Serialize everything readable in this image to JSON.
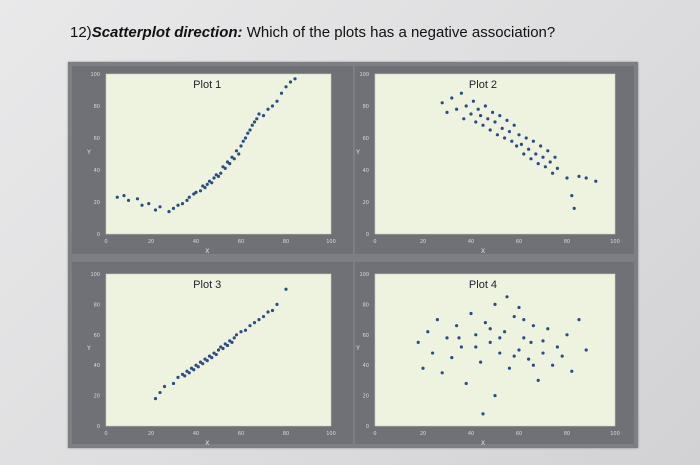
{
  "question": {
    "number": "12)",
    "lead": "Scatterplot direction:",
    "text": " Which of the plots has a negative association?"
  },
  "chart_data": [
    {
      "type": "scatter",
      "title": "Plot 1",
      "xlabel": "X",
      "ylabel": "Y",
      "xlim": [
        0,
        100
      ],
      "ylim": [
        0,
        100
      ],
      "xticks": [
        "0",
        "20",
        "40",
        "60",
        "80",
        "100"
      ],
      "yticks": [
        "0",
        "20",
        "40",
        "60",
        "80",
        "100"
      ],
      "colors": {
        "point": "#2a4d86"
      },
      "points": [
        [
          5,
          23
        ],
        [
          8,
          24
        ],
        [
          10,
          21
        ],
        [
          14,
          22
        ],
        [
          16,
          18
        ],
        [
          19,
          19
        ],
        [
          22,
          15
        ],
        [
          24,
          17
        ],
        [
          28,
          14
        ],
        [
          30,
          16
        ],
        [
          32,
          18
        ],
        [
          34,
          19
        ],
        [
          36,
          21
        ],
        [
          37,
          23
        ],
        [
          39,
          25
        ],
        [
          40,
          26
        ],
        [
          42,
          27
        ],
        [
          43,
          30
        ],
        [
          44,
          29
        ],
        [
          45,
          31
        ],
        [
          46,
          33
        ],
        [
          47,
          32
        ],
        [
          48,
          35
        ],
        [
          49,
          37
        ],
        [
          50,
          36
        ],
        [
          51,
          38
        ],
        [
          52,
          42
        ],
        [
          53,
          41
        ],
        [
          54,
          45
        ],
        [
          55,
          44
        ],
        [
          56,
          48
        ],
        [
          57,
          47
        ],
        [
          58,
          52
        ],
        [
          59,
          50
        ],
        [
          60,
          55
        ],
        [
          61,
          58
        ],
        [
          62,
          60
        ],
        [
          63,
          63
        ],
        [
          64,
          65
        ],
        [
          65,
          68
        ],
        [
          66,
          70
        ],
        [
          67,
          72
        ],
        [
          68,
          75
        ],
        [
          70,
          74
        ],
        [
          72,
          78
        ],
        [
          74,
          80
        ],
        [
          76,
          83
        ],
        [
          78,
          88
        ],
        [
          80,
          92
        ],
        [
          82,
          95
        ],
        [
          84,
          97
        ]
      ]
    },
    {
      "type": "scatter",
      "title": "Plot 2",
      "xlabel": "X",
      "ylabel": "Y",
      "xlim": [
        0,
        100
      ],
      "ylim": [
        0,
        100
      ],
      "xticks": [
        "0",
        "20",
        "40",
        "60",
        "80",
        "100"
      ],
      "yticks": [
        "0",
        "20",
        "40",
        "60",
        "80",
        "100"
      ],
      "colors": {
        "point": "#2a4d86"
      },
      "points": [
        [
          28,
          82
        ],
        [
          30,
          76
        ],
        [
          32,
          85
        ],
        [
          34,
          78
        ],
        [
          36,
          88
        ],
        [
          37,
          72
        ],
        [
          38,
          80
        ],
        [
          40,
          75
        ],
        [
          41,
          83
        ],
        [
          42,
          70
        ],
        [
          43,
          78
        ],
        [
          44,
          74
        ],
        [
          45,
          68
        ],
        [
          46,
          80
        ],
        [
          47,
          72
        ],
        [
          48,
          65
        ],
        [
          49,
          76
        ],
        [
          50,
          70
        ],
        [
          51,
          62
        ],
        [
          52,
          74
        ],
        [
          53,
          66
        ],
        [
          54,
          60
        ],
        [
          55,
          71
        ],
        [
          56,
          64
        ],
        [
          57,
          58
        ],
        [
          58,
          68
        ],
        [
          59,
          55
        ],
        [
          60,
          62
        ],
        [
          61,
          56
        ],
        [
          62,
          50
        ],
        [
          63,
          60
        ],
        [
          64,
          53
        ],
        [
          65,
          47
        ],
        [
          66,
          58
        ],
        [
          67,
          50
        ],
        [
          68,
          44
        ],
        [
          69,
          55
        ],
        [
          70,
          48
        ],
        [
          71,
          42
        ],
        [
          72,
          52
        ],
        [
          73,
          45
        ],
        [
          74,
          38
        ],
        [
          75,
          48
        ],
        [
          76,
          41
        ],
        [
          80,
          35
        ],
        [
          82,
          24
        ],
        [
          83,
          16
        ],
        [
          85,
          36
        ],
        [
          88,
          35
        ],
        [
          92,
          33
        ]
      ]
    },
    {
      "type": "scatter",
      "title": "Plot 3",
      "xlabel": "X",
      "ylabel": "Y",
      "xlim": [
        0,
        100
      ],
      "ylim": [
        0,
        100
      ],
      "xticks": [
        "0",
        "20",
        "40",
        "60",
        "80",
        "100"
      ],
      "yticks": [
        "0",
        "20",
        "40",
        "60",
        "80",
        "100"
      ],
      "colors": {
        "point": "#2a4d86"
      },
      "points": [
        [
          22,
          18
        ],
        [
          24,
          22
        ],
        [
          26,
          26
        ],
        [
          30,
          28
        ],
        [
          32,
          32
        ],
        [
          34,
          34
        ],
        [
          35,
          33
        ],
        [
          36,
          36
        ],
        [
          37,
          35
        ],
        [
          38,
          38
        ],
        [
          39,
          37
        ],
        [
          40,
          40
        ],
        [
          41,
          39
        ],
        [
          42,
          42
        ],
        [
          43,
          41
        ],
        [
          44,
          44
        ],
        [
          45,
          43
        ],
        [
          46,
          46
        ],
        [
          47,
          45
        ],
        [
          48,
          48
        ],
        [
          49,
          47
        ],
        [
          50,
          50
        ],
        [
          51,
          52
        ],
        [
          52,
          51
        ],
        [
          53,
          54
        ],
        [
          54,
          53
        ],
        [
          55,
          56
        ],
        [
          56,
          55
        ],
        [
          57,
          58
        ],
        [
          58,
          60
        ],
        [
          60,
          62
        ],
        [
          62,
          63
        ],
        [
          64,
          66
        ],
        [
          66,
          68
        ],
        [
          68,
          70
        ],
        [
          70,
          72
        ],
        [
          72,
          75
        ],
        [
          74,
          76
        ],
        [
          76,
          80
        ],
        [
          80,
          90
        ]
      ]
    },
    {
      "type": "scatter",
      "title": "Plot 4",
      "xlabel": "X",
      "ylabel": "Y",
      "xlim": [
        0,
        100
      ],
      "ylim": [
        0,
        100
      ],
      "xticks": [
        "0",
        "20",
        "40",
        "60",
        "80",
        "100"
      ],
      "yticks": [
        "0",
        "20",
        "40",
        "60",
        "80",
        "100"
      ],
      "colors": {
        "point": "#2a4d86"
      },
      "points": [
        [
          18,
          55
        ],
        [
          20,
          38
        ],
        [
          22,
          62
        ],
        [
          24,
          48
        ],
        [
          26,
          70
        ],
        [
          28,
          35
        ],
        [
          30,
          58
        ],
        [
          32,
          45
        ],
        [
          34,
          66
        ],
        [
          36,
          52
        ],
        [
          38,
          28
        ],
        [
          40,
          74
        ],
        [
          42,
          60
        ],
        [
          44,
          42
        ],
        [
          46,
          68
        ],
        [
          48,
          55
        ],
        [
          50,
          80
        ],
        [
          52,
          48
        ],
        [
          54,
          62
        ],
        [
          56,
          38
        ],
        [
          58,
          72
        ],
        [
          60,
          50
        ],
        [
          62,
          58
        ],
        [
          64,
          44
        ],
        [
          66,
          66
        ],
        [
          68,
          30
        ],
        [
          70,
          56
        ],
        [
          72,
          64
        ],
        [
          74,
          40
        ],
        [
          76,
          52
        ],
        [
          78,
          46
        ],
        [
          80,
          60
        ],
        [
          82,
          36
        ],
        [
          85,
          70
        ],
        [
          88,
          50
        ],
        [
          45,
          8
        ],
        [
          50,
          20
        ],
        [
          55,
          85
        ],
        [
          60,
          78
        ],
        [
          65,
          55
        ],
        [
          70,
          48
        ],
        [
          48,
          64
        ],
        [
          52,
          58
        ],
        [
          58,
          46
        ],
        [
          62,
          70
        ],
        [
          66,
          40
        ],
        [
          35,
          58
        ],
        [
          42,
          52
        ]
      ]
    }
  ]
}
